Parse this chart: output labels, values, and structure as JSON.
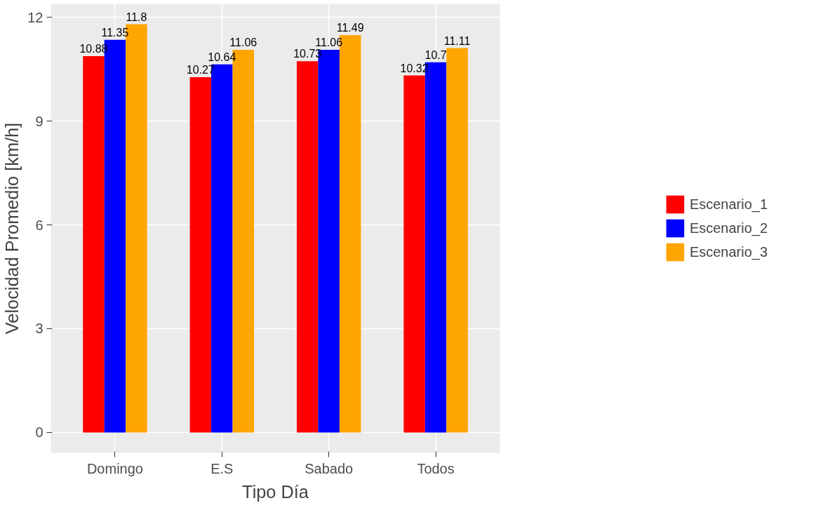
{
  "chart_data": {
    "type": "bar",
    "xlabel": "Tipo Día",
    "ylabel": "Velocidad Promedio [km/h]",
    "categories": [
      "Domingo",
      "E.S",
      "Sabado",
      "Todos"
    ],
    "series": [
      {
        "name": "Escenario_1",
        "color": "#ff0000",
        "values": [
          10.88,
          10.27,
          10.73,
          10.32
        ]
      },
      {
        "name": "Escenario_2",
        "color": "#0000ff",
        "values": [
          11.35,
          10.64,
          11.06,
          10.7
        ]
      },
      {
        "name": "Escenario_3",
        "color": "#ffa500",
        "values": [
          11.8,
          11.06,
          11.49,
          11.11
        ]
      }
    ],
    "ylim": [
      -0.59,
      12.39
    ],
    "yticks": [
      0,
      3,
      6,
      9,
      12
    ],
    "grid": true,
    "legend": "right",
    "data_labels": true
  }
}
